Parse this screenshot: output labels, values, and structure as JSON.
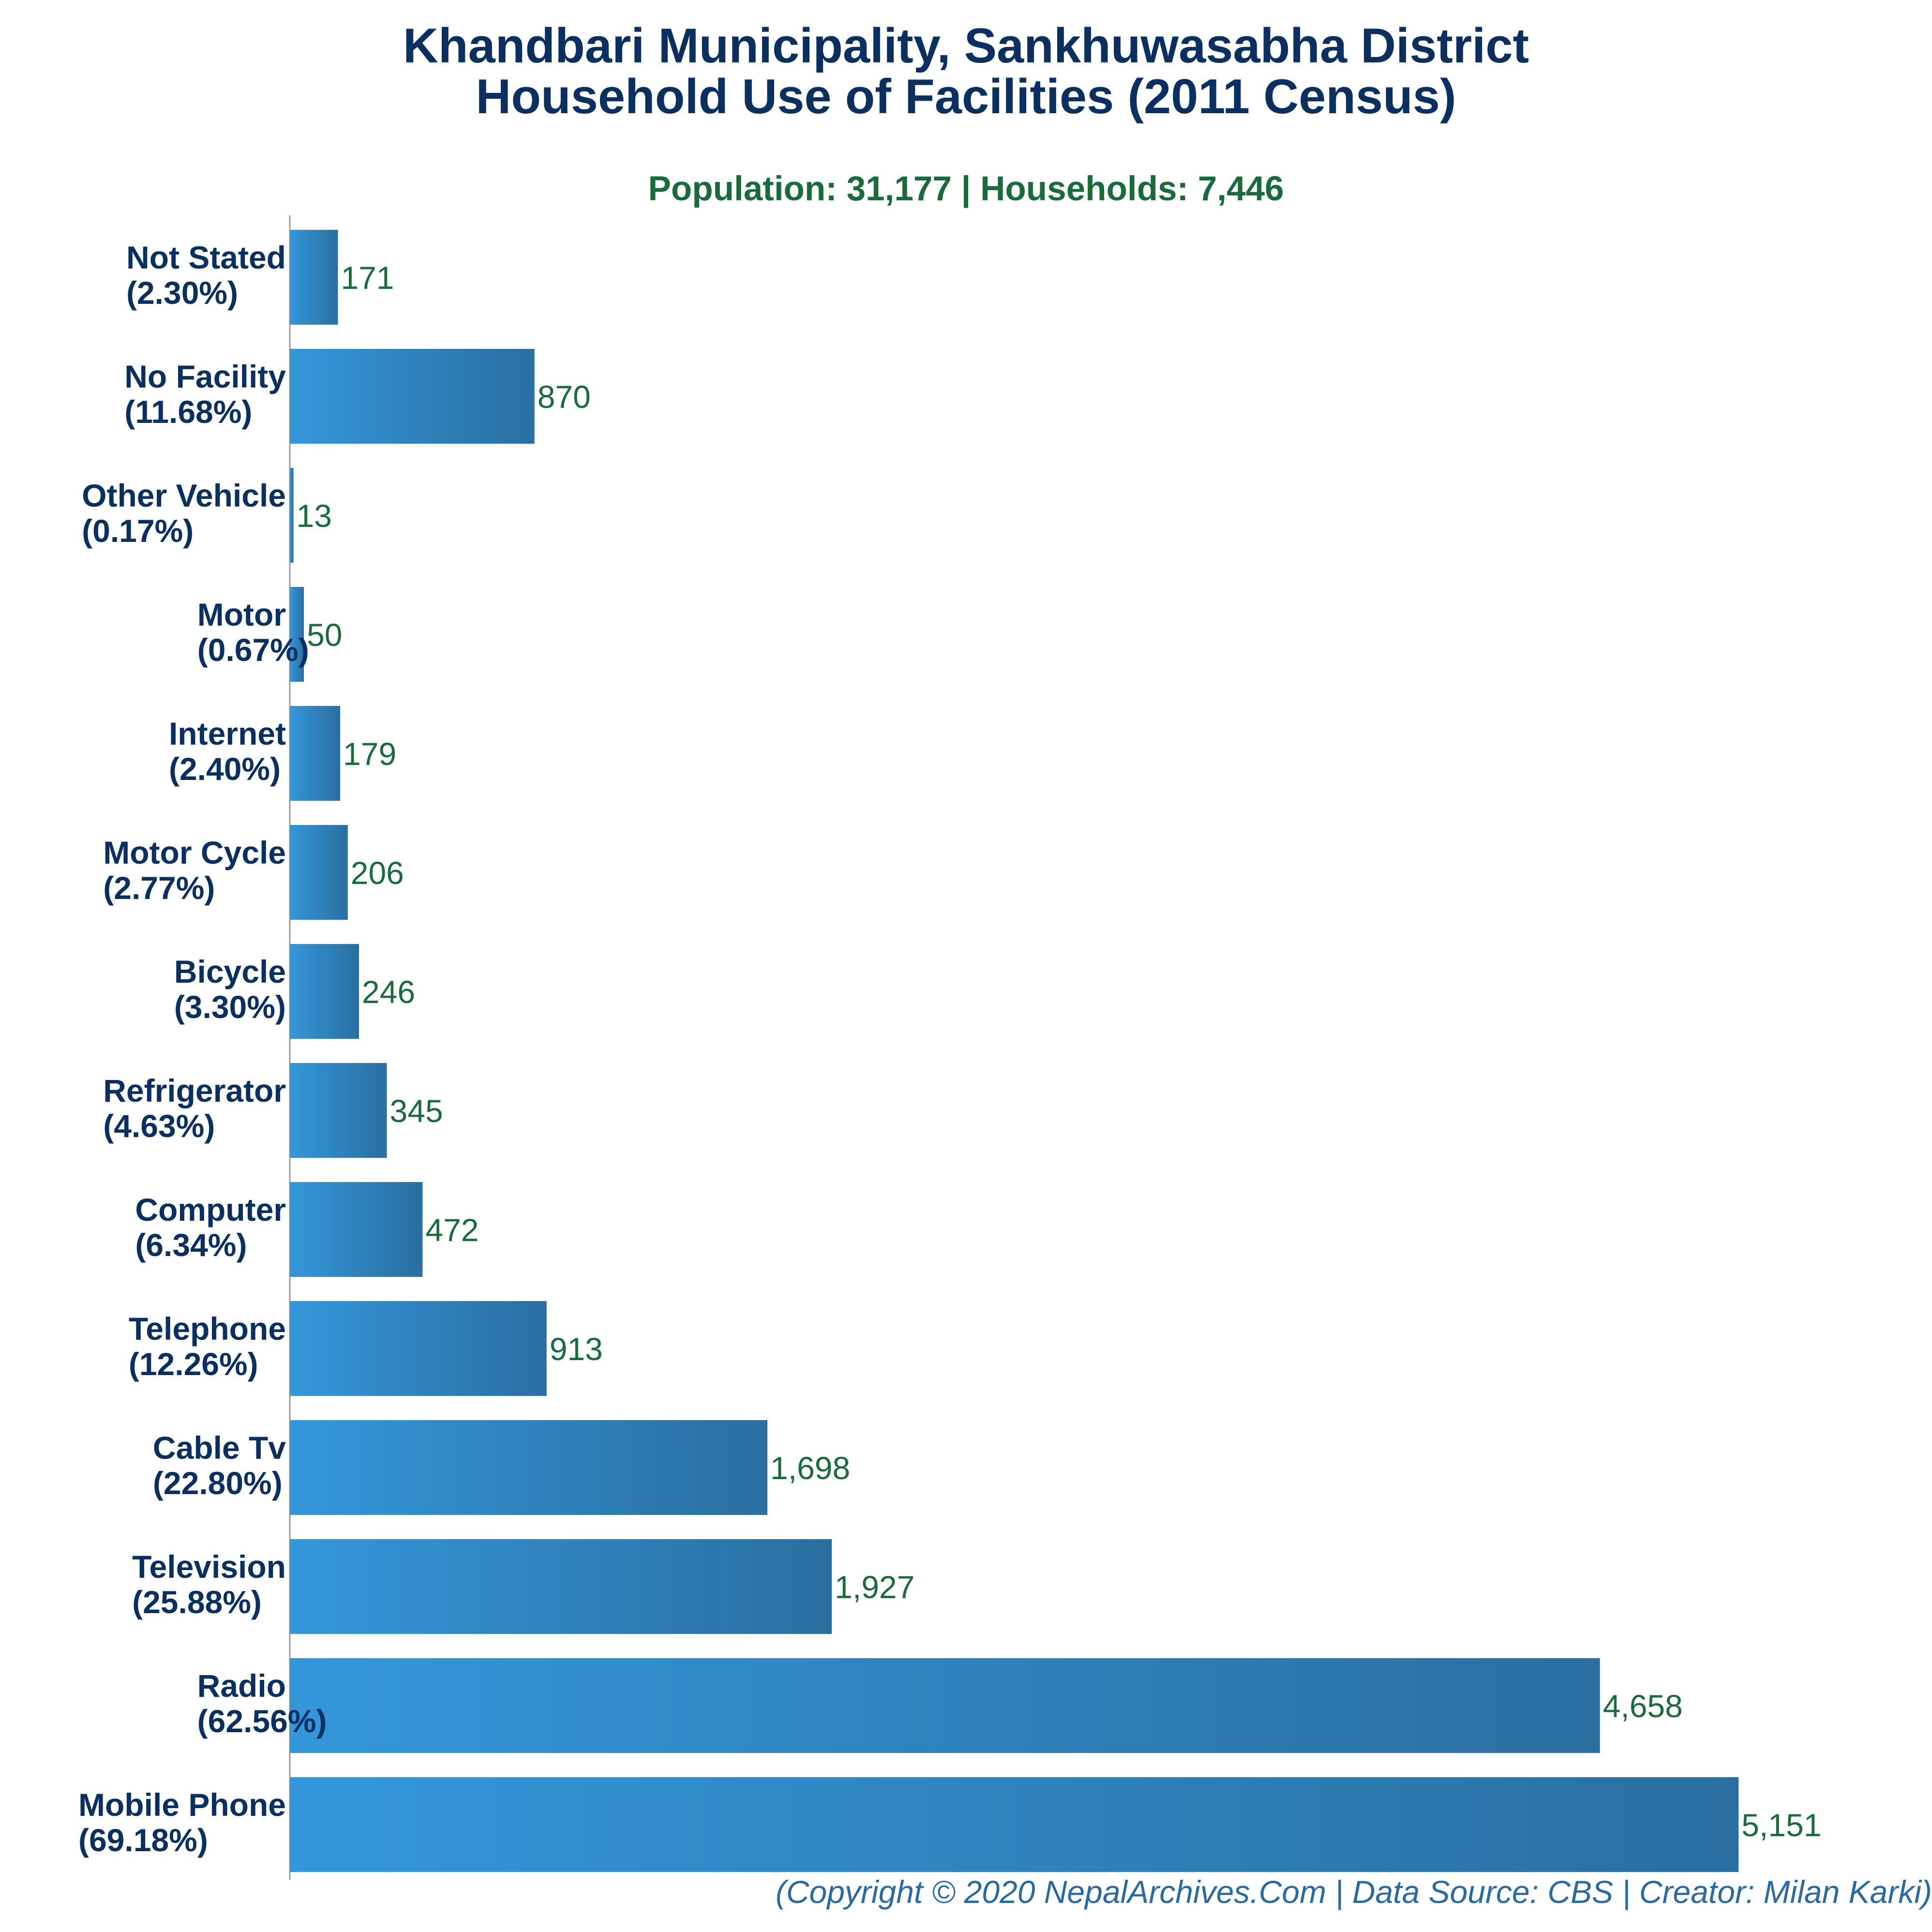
{
  "chart_data": {
    "type": "bar",
    "orientation": "horizontal",
    "title_line1": "Khandbari Municipality, Sankhuwasabha District",
    "title_line2": "Household Use of Facilities (2011 Census)",
    "subtitle": "Population: 31,177 | Households: 7,446",
    "footer": "(Copyright © 2020 NepalArchives.Com | Data Source: CBS | Creator: Milan Karki)",
    "xlim": [
      0,
      5500
    ],
    "grid": false,
    "bar_color_start": "#3497db",
    "bar_color_end": "#2a6fa0",
    "categories": [
      {
        "name": "Not Stated",
        "pct": "(2.30%)",
        "value": 171,
        "value_label": "171"
      },
      {
        "name": "No Facility",
        "pct": "(11.68%)",
        "value": 870,
        "value_label": "870"
      },
      {
        "name": "Other Vehicle",
        "pct": "(0.17%)",
        "value": 13,
        "value_label": "13"
      },
      {
        "name": "Motor",
        "pct": "(0.67%)",
        "value": 50,
        "value_label": "50"
      },
      {
        "name": "Internet",
        "pct": "(2.40%)",
        "value": 179,
        "value_label": "179"
      },
      {
        "name": "Motor Cycle",
        "pct": "(2.77%)",
        "value": 206,
        "value_label": "206"
      },
      {
        "name": "Bicycle",
        "pct": "(3.30%)",
        "value": 246,
        "value_label": "246"
      },
      {
        "name": "Refrigerator",
        "pct": "(4.63%)",
        "value": 345,
        "value_label": "345"
      },
      {
        "name": "Computer",
        "pct": "(6.34%)",
        "value": 472,
        "value_label": "472"
      },
      {
        "name": "Telephone",
        "pct": "(12.26%)",
        "value": 913,
        "value_label": "913"
      },
      {
        "name": "Cable Tv",
        "pct": "(22.80%)",
        "value": 1698,
        "value_label": "1,698"
      },
      {
        "name": "Television",
        "pct": "(25.88%)",
        "value": 1927,
        "value_label": "1,927"
      },
      {
        "name": "Radio",
        "pct": "(62.56%)",
        "value": 4658,
        "value_label": "4,658"
      },
      {
        "name": "Mobile Phone",
        "pct": "(69.18%)",
        "value": 5151,
        "value_label": "5,151"
      }
    ]
  }
}
